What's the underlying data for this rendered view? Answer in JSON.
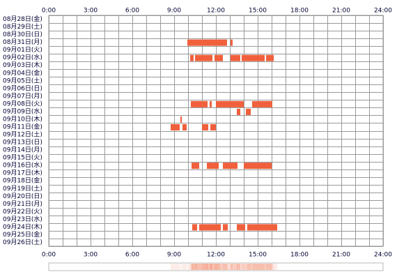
{
  "chart_data": {
    "type": "timeline",
    "categories": [
      "08月28日(金)",
      "08月29日(土)",
      "08月30日(日)",
      "08月31日(月)",
      "09月01日(火)",
      "09月02日(水)",
      "09月03日(木)",
      "09月04日(金)",
      "09月05日(土)",
      "09月06日(日)",
      "09月07日(月)",
      "09月08日(火)",
      "09月09日(水)",
      "09月10日(木)",
      "09月11日(金)",
      "09月12日(土)",
      "09月13日(日)",
      "09月14日(月)",
      "09月15日(火)",
      "09月16日(水)",
      "09月17日(木)",
      "09月18日(金)",
      "09月19日(土)",
      "09月20日(日)",
      "09月21日(月)",
      "09月22日(火)",
      "09月23日(水)",
      "09月24日(木)",
      "09月25日(金)",
      "09月26日(土)"
    ],
    "segments": [
      [],
      [],
      [],
      [
        [
          9.95,
          12.8
        ],
        [
          13.05,
          13.2
        ]
      ],
      [],
      [
        [
          10.15,
          10.4
        ],
        [
          10.5,
          11.75
        ],
        [
          11.9,
          12.5
        ],
        [
          13.05,
          13.75
        ],
        [
          13.85,
          15.5
        ],
        [
          15.6,
          16.15
        ]
      ],
      [],
      [],
      [],
      [],
      [],
      [
        [
          10.2,
          11.4
        ],
        [
          11.55,
          11.7
        ],
        [
          12.0,
          14.0
        ],
        [
          14.6,
          16.05
        ]
      ],
      [
        [
          13.5,
          13.75
        ],
        [
          14.15,
          14.5
        ]
      ],
      [
        [
          9.45,
          9.55
        ]
      ],
      [
        [
          8.75,
          9.4
        ],
        [
          9.6,
          9.9
        ],
        [
          11.0,
          11.45
        ],
        [
          11.6,
          12.0
        ]
      ],
      [],
      [],
      [],
      [],
      [
        [
          10.25,
          10.8
        ],
        [
          11.35,
          12.2
        ],
        [
          12.5,
          13.55
        ],
        [
          14.0,
          16.0
        ]
      ],
      [],
      [],
      [],
      [],
      [],
      [],
      [],
      [
        [
          10.3,
          10.65
        ],
        [
          10.8,
          12.35
        ],
        [
          12.5,
          12.85
        ],
        [
          13.5,
          14.1
        ],
        [
          14.25,
          16.4
        ]
      ],
      [],
      []
    ],
    "color": "#f0603c",
    "xlim": [
      0,
      24
    ],
    "xticks": [
      {
        "value": 0,
        "label": "0:00"
      },
      {
        "value": 3,
        "label": "3:00"
      },
      {
        "value": 6,
        "label": "6:00"
      },
      {
        "value": 9,
        "label": "9:00"
      },
      {
        "value": 12,
        "label": "12:00"
      },
      {
        "value": 15,
        "label": "15:00"
      },
      {
        "value": 18,
        "label": "18:00"
      },
      {
        "value": 21,
        "label": "21:00"
      },
      {
        "value": 24,
        "label": "24:00"
      }
    ],
    "xgrid": [
      0,
      1,
      2,
      3,
      4,
      5,
      6,
      7,
      8,
      9,
      10,
      11,
      12,
      13,
      14,
      15,
      16,
      17,
      18,
      19,
      20,
      21,
      22,
      23,
      24
    ]
  }
}
